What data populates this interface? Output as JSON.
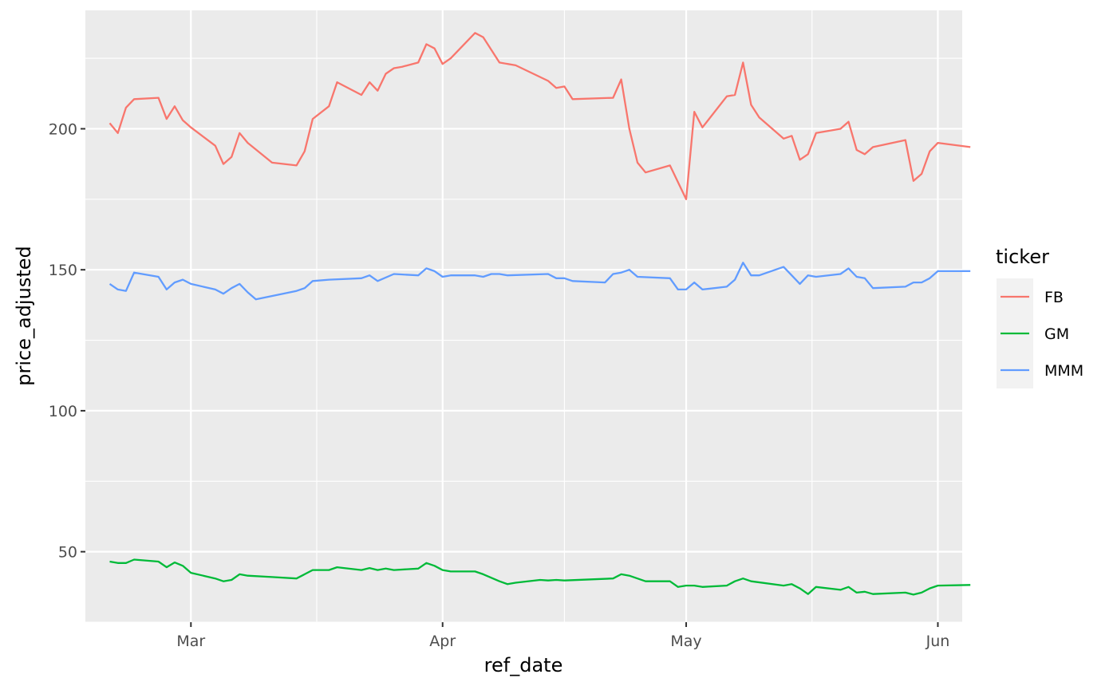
{
  "chart_data": {
    "type": "line",
    "xlabel": "ref_date",
    "ylabel": "price_adjusted",
    "x_ticks": [
      {
        "date": "2019-03-01",
        "label": "Mar"
      },
      {
        "date": "2019-04-01",
        "label": "Apr"
      },
      {
        "date": "2019-05-01",
        "label": "May"
      },
      {
        "date": "2019-06-01",
        "label": "Jun"
      }
    ],
    "y_ticks": [
      50,
      100,
      150,
      200
    ],
    "xlim": [
      "2019-02-16",
      "2019-06-04"
    ],
    "ylim": [
      25,
      242
    ],
    "grid": true,
    "legend": {
      "title": "ticker",
      "position": "right",
      "entries": [
        "FB",
        "GM",
        "MMM"
      ]
    },
    "series": [
      {
        "name": "FB",
        "color": "#F8766D",
        "points": [
          [
            "2019-02-19",
            202
          ],
          [
            "2019-02-20",
            198.5
          ],
          [
            "2019-02-21",
            207.5
          ],
          [
            "2019-02-22",
            210.5
          ],
          [
            "2019-02-25",
            211
          ],
          [
            "2019-02-26",
            203.5
          ],
          [
            "2019-02-27",
            208
          ],
          [
            "2019-02-28",
            203
          ],
          [
            "2019-03-01",
            200.5
          ],
          [
            "2019-03-04",
            194
          ],
          [
            "2019-03-05",
            187.5
          ],
          [
            "2019-03-06",
            190
          ],
          [
            "2019-03-07",
            198.5
          ],
          [
            "2019-03-08",
            195
          ],
          [
            "2019-03-11",
            188
          ],
          [
            "2019-03-14",
            187
          ],
          [
            "2019-03-15",
            192
          ],
          [
            "2019-03-16",
            203.5
          ],
          [
            "2019-03-18",
            208
          ],
          [
            "2019-03-19",
            216.5
          ],
          [
            "2019-03-22",
            212
          ],
          [
            "2019-03-23",
            216.5
          ],
          [
            "2019-03-24",
            213.5
          ],
          [
            "2019-03-25",
            219.5
          ],
          [
            "2019-03-26",
            221.5
          ],
          [
            "2019-03-27",
            222
          ],
          [
            "2019-03-29",
            223.5
          ],
          [
            "2019-03-30",
            230
          ],
          [
            "2019-03-31",
            228.5
          ],
          [
            "2019-04-01",
            223
          ],
          [
            "2019-04-02",
            225
          ],
          [
            "2019-04-05",
            234
          ],
          [
            "2019-04-06",
            232.5
          ],
          [
            "2019-04-08",
            223.5
          ],
          [
            "2019-04-10",
            222.5
          ],
          [
            "2019-04-14",
            217
          ],
          [
            "2019-04-15",
            214.5
          ],
          [
            "2019-04-16",
            215
          ],
          [
            "2019-04-17",
            210.5
          ],
          [
            "2019-04-22",
            211
          ],
          [
            "2019-04-23",
            217.5
          ],
          [
            "2019-04-24",
            200
          ],
          [
            "2019-04-25",
            188
          ],
          [
            "2019-04-26",
            184.5
          ],
          [
            "2019-04-29",
            187
          ],
          [
            "2019-05-01",
            175
          ],
          [
            "2019-05-02",
            206
          ],
          [
            "2019-05-03",
            200.5
          ],
          [
            "2019-05-06",
            211.5
          ],
          [
            "2019-05-07",
            212
          ],
          [
            "2019-05-08",
            223.5
          ],
          [
            "2019-05-09",
            208.5
          ],
          [
            "2019-05-10",
            204
          ],
          [
            "2019-05-13",
            196.5
          ],
          [
            "2019-05-14",
            197.5
          ],
          [
            "2019-05-15",
            189
          ],
          [
            "2019-05-16",
            191
          ],
          [
            "2019-05-17",
            198.5
          ],
          [
            "2019-05-20",
            200
          ],
          [
            "2019-05-21",
            202.5
          ],
          [
            "2019-05-22",
            192.5
          ],
          [
            "2019-05-23",
            191
          ],
          [
            "2019-05-24",
            193.5
          ],
          [
            "2019-05-28",
            196
          ],
          [
            "2019-05-29",
            181.5
          ],
          [
            "2019-05-30",
            184
          ],
          [
            "2019-05-31",
            192
          ],
          [
            "2019-06-01",
            195
          ],
          [
            "2019-06-05",
            193.5
          ]
        ]
      },
      {
        "name": "GM",
        "color": "#00BA38",
        "points": [
          [
            "2019-02-19",
            46.5
          ],
          [
            "2019-02-20",
            46
          ],
          [
            "2019-02-21",
            46
          ],
          [
            "2019-02-22",
            47.2
          ],
          [
            "2019-02-25",
            46.5
          ],
          [
            "2019-02-26",
            44.5
          ],
          [
            "2019-02-27",
            46.2
          ],
          [
            "2019-02-28",
            45
          ],
          [
            "2019-03-01",
            42.5
          ],
          [
            "2019-03-04",
            40.5
          ],
          [
            "2019-03-05",
            39.5
          ],
          [
            "2019-03-06",
            40
          ],
          [
            "2019-03-07",
            42
          ],
          [
            "2019-03-08",
            41.5
          ],
          [
            "2019-03-11",
            41
          ],
          [
            "2019-03-14",
            40.5
          ],
          [
            "2019-03-15",
            42
          ],
          [
            "2019-03-16",
            43.5
          ],
          [
            "2019-03-18",
            43.5
          ],
          [
            "2019-03-19",
            44.5
          ],
          [
            "2019-03-22",
            43.5
          ],
          [
            "2019-03-23",
            44.2
          ],
          [
            "2019-03-24",
            43.5
          ],
          [
            "2019-03-25",
            44
          ],
          [
            "2019-03-26",
            43.5
          ],
          [
            "2019-03-29",
            44
          ],
          [
            "2019-03-30",
            46
          ],
          [
            "2019-03-31",
            45
          ],
          [
            "2019-04-01",
            43.5
          ],
          [
            "2019-04-02",
            43
          ],
          [
            "2019-04-05",
            43
          ],
          [
            "2019-04-06",
            42
          ],
          [
            "2019-04-08",
            39.5
          ],
          [
            "2019-04-09",
            38.5
          ],
          [
            "2019-04-10",
            39
          ],
          [
            "2019-04-13",
            40
          ],
          [
            "2019-04-14",
            39.8
          ],
          [
            "2019-04-15",
            40
          ],
          [
            "2019-04-16",
            39.8
          ],
          [
            "2019-04-22",
            40.5
          ],
          [
            "2019-04-23",
            42
          ],
          [
            "2019-04-24",
            41.5
          ],
          [
            "2019-04-26",
            39.5
          ],
          [
            "2019-04-29",
            39.5
          ],
          [
            "2019-04-30",
            37.5
          ],
          [
            "2019-05-01",
            38
          ],
          [
            "2019-05-02",
            38
          ],
          [
            "2019-05-03",
            37.5
          ],
          [
            "2019-05-06",
            38
          ],
          [
            "2019-05-07",
            39.5
          ],
          [
            "2019-05-08",
            40.5
          ],
          [
            "2019-05-09",
            39.5
          ],
          [
            "2019-05-13",
            38
          ],
          [
            "2019-05-14",
            38.5
          ],
          [
            "2019-05-15",
            37
          ],
          [
            "2019-05-16",
            35
          ],
          [
            "2019-05-17",
            37.5
          ],
          [
            "2019-05-20",
            36.5
          ],
          [
            "2019-05-21",
            37.5
          ],
          [
            "2019-05-22",
            35.5
          ],
          [
            "2019-05-23",
            35.8
          ],
          [
            "2019-05-24",
            35
          ],
          [
            "2019-05-28",
            35.5
          ],
          [
            "2019-05-29",
            34.8
          ],
          [
            "2019-05-30",
            35.5
          ],
          [
            "2019-05-31",
            37
          ],
          [
            "2019-06-01",
            38
          ],
          [
            "2019-06-05",
            38.2
          ]
        ]
      },
      {
        "name": "MMM",
        "color": "#619CFF",
        "points": [
          [
            "2019-02-19",
            145
          ],
          [
            "2019-02-20",
            143
          ],
          [
            "2019-02-21",
            142.5
          ],
          [
            "2019-02-22",
            149
          ],
          [
            "2019-02-25",
            147.5
          ],
          [
            "2019-02-26",
            143
          ],
          [
            "2019-02-27",
            145.5
          ],
          [
            "2019-02-28",
            146.5
          ],
          [
            "2019-03-01",
            145
          ],
          [
            "2019-03-04",
            143
          ],
          [
            "2019-03-05",
            141.5
          ],
          [
            "2019-03-06",
            143.5
          ],
          [
            "2019-03-07",
            145
          ],
          [
            "2019-03-08",
            142
          ],
          [
            "2019-03-09",
            139.5
          ],
          [
            "2019-03-14",
            142.5
          ],
          [
            "2019-03-15",
            143.5
          ],
          [
            "2019-03-16",
            146
          ],
          [
            "2019-03-18",
            146.5
          ],
          [
            "2019-03-22",
            147
          ],
          [
            "2019-03-23",
            148
          ],
          [
            "2019-03-24",
            146
          ],
          [
            "2019-03-26",
            148.5
          ],
          [
            "2019-03-29",
            148
          ],
          [
            "2019-03-30",
            150.5
          ],
          [
            "2019-03-31",
            149.5
          ],
          [
            "2019-04-01",
            147.5
          ],
          [
            "2019-04-02",
            148
          ],
          [
            "2019-04-05",
            148
          ],
          [
            "2019-04-06",
            147.5
          ],
          [
            "2019-04-07",
            148.5
          ],
          [
            "2019-04-08",
            148.5
          ],
          [
            "2019-04-09",
            148
          ],
          [
            "2019-04-14",
            148.5
          ],
          [
            "2019-04-15",
            147
          ],
          [
            "2019-04-16",
            147
          ],
          [
            "2019-04-17",
            146
          ],
          [
            "2019-04-21",
            145.5
          ],
          [
            "2019-04-22",
            148.5
          ],
          [
            "2019-04-23",
            149
          ],
          [
            "2019-04-24",
            150
          ],
          [
            "2019-04-25",
            147.5
          ],
          [
            "2019-04-29",
            147
          ],
          [
            "2019-04-30",
            143
          ],
          [
            "2019-05-01",
            143
          ],
          [
            "2019-05-02",
            145.5
          ],
          [
            "2019-05-03",
            143
          ],
          [
            "2019-05-06",
            144
          ],
          [
            "2019-05-07",
            146.5
          ],
          [
            "2019-05-08",
            152.5
          ],
          [
            "2019-05-09",
            148
          ],
          [
            "2019-05-10",
            148
          ],
          [
            "2019-05-13",
            151
          ],
          [
            "2019-05-14",
            148
          ],
          [
            "2019-05-15",
            145
          ],
          [
            "2019-05-16",
            148
          ],
          [
            "2019-05-17",
            147.5
          ],
          [
            "2019-05-20",
            148.5
          ],
          [
            "2019-05-21",
            150.5
          ],
          [
            "2019-05-22",
            147.5
          ],
          [
            "2019-05-23",
            147
          ],
          [
            "2019-05-24",
            143.5
          ],
          [
            "2019-05-28",
            144
          ],
          [
            "2019-05-29",
            145.5
          ],
          [
            "2019-05-30",
            145.5
          ],
          [
            "2019-05-31",
            147
          ],
          [
            "2019-06-01",
            149.5
          ],
          [
            "2019-06-05",
            149.5
          ]
        ]
      }
    ]
  }
}
